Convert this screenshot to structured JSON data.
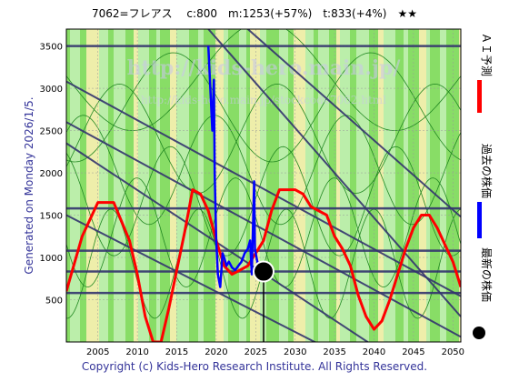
{
  "header_text": "7062=フレアス　 c:800　m:1253(+57%)　t:833(+4%)　★★",
  "left_side_label": "Generated on Monday 2026/1/5.",
  "footer_text": "Copyright (c) Kids-Hero Research Institute. All Rights Reserved.",
  "watermark_main": "http://kids-hero.main.jp/",
  "watermark_sub": "http://kids-hero.main.jp/stockcode7062.html",
  "legend": [
    {
      "label": "ＡＩ予測",
      "color": "#ff0000"
    },
    {
      "label": "過去の株価",
      "color": "#0000ff"
    },
    {
      "label": "最新の株価",
      "color": "#000000"
    }
  ],
  "colors": {
    "ai_forecast": "#ff0000",
    "past_price": "#0000ff",
    "latest_price": "#000000",
    "trend_lines": "#33336e",
    "band_green": "#88dd66",
    "band_light": "#bbeeaa",
    "band_yellow": "#eeeeaa",
    "thin_lines": "#228822"
  },
  "chart_data": {
    "type": "line",
    "xlim": [
      2001,
      2051
    ],
    "ylim": [
      0,
      3700
    ],
    "x_ticks": [
      2005,
      2010,
      2015,
      2020,
      2025,
      2030,
      2035,
      2040,
      2045,
      2050
    ],
    "y_ticks": [
      500,
      1000,
      1500,
      2000,
      2500,
      3000,
      3500
    ],
    "grid": true,
    "horizontal_levels": [
      3500,
      1580,
      1080,
      833,
      580
    ],
    "diagonal_lines": [
      {
        "x": [
          2001,
          2051
        ],
        "y": [
          3080,
          540
        ]
      },
      {
        "x": [
          2001,
          2051
        ],
        "y": [
          2600,
          60
        ]
      },
      {
        "x": [
          2001,
          2040
        ],
        "y": [
          2350,
          -50
        ]
      },
      {
        "x": [
          2001,
          2035
        ],
        "y": [
          1500,
          -120
        ]
      },
      {
        "x": [
          2019,
          2051
        ],
        "y": [
          3700,
          300
        ]
      },
      {
        "x": [
          2024,
          2051
        ],
        "y": [
          3700,
          1480
        ]
      }
    ],
    "series": [
      {
        "name": "ＡＩ予測",
        "x": [
          2001,
          2003,
          2005,
          2007,
          2009,
          2010,
          2011,
          2012,
          2013,
          2014,
          2016,
          2017,
          2018,
          2019,
          2020,
          2021,
          2022,
          2023,
          2024,
          2025,
          2026,
          2027,
          2028,
          2029,
          2030,
          2031,
          2032,
          2034,
          2035,
          2036,
          2037,
          2038,
          2039,
          2040,
          2041,
          2042,
          2043,
          2044,
          2045,
          2046,
          2047,
          2048,
          2049,
          2050,
          2051
        ],
        "y": [
          600,
          1250,
          1650,
          1650,
          1200,
          800,
          300,
          0,
          0,
          400,
          1300,
          1800,
          1750,
          1550,
          1200,
          900,
          800,
          850,
          900,
          1050,
          1200,
          1550,
          1800,
          1800,
          1800,
          1750,
          1600,
          1500,
          1250,
          1100,
          900,
          550,
          300,
          150,
          250,
          500,
          800,
          1100,
          1350,
          1500,
          1500,
          1350,
          1150,
          950,
          650
        ]
      },
      {
        "name": "過去の株価",
        "x": [
          2019.0,
          2019.5,
          2019.7,
          2019.8,
          2020.0,
          2020.2,
          2020.5,
          2020.8,
          2021.0,
          2021.3,
          2021.6,
          2022.0,
          2022.4,
          2022.8,
          2023.2,
          2023.6,
          2024.0,
          2024.3,
          2024.5,
          2024.8,
          2024.9,
          2025.2,
          2025.4,
          2025.6
        ],
        "y": [
          3500,
          2500,
          3100,
          2000,
          1200,
          800,
          650,
          1050,
          1000,
          900,
          950,
          880,
          850,
          900,
          950,
          1050,
          1100,
          1200,
          800,
          1900,
          1100,
          950,
          900,
          850
        ]
      }
    ],
    "latest_point": {
      "x": 2026.0,
      "y": 833
    }
  }
}
